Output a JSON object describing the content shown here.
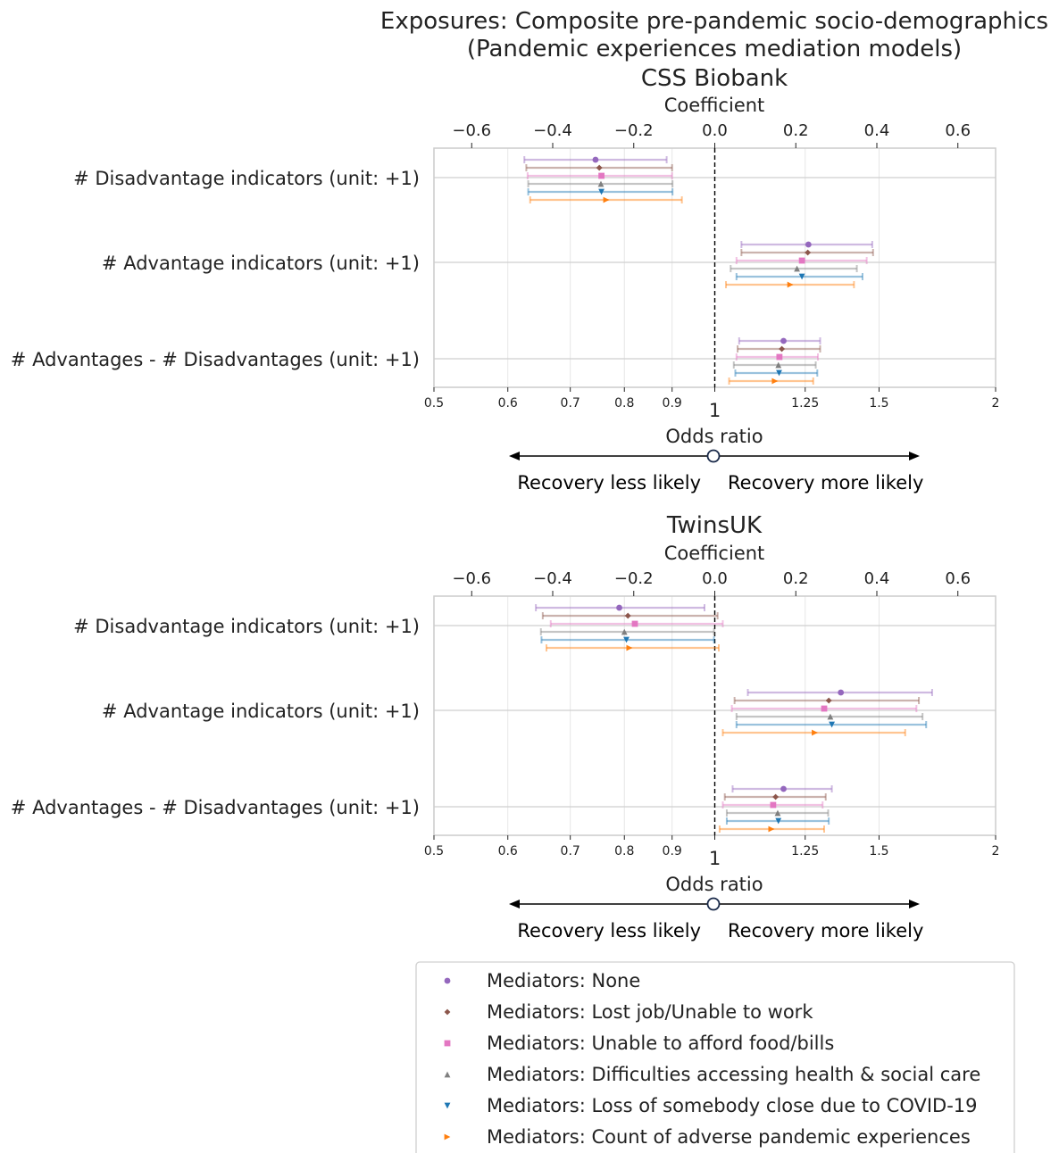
{
  "figure": {
    "title_line1": "Exposures: Composite pre-pandemic socio-demographics",
    "title_line2": "(Pandemic experiences mediation models)"
  },
  "legend": [
    {
      "label": "Mediators: None",
      "color": "#9467bd",
      "marker": "circle"
    },
    {
      "label": "Mediators: Lost job/Unable to work",
      "color": "#8c564b",
      "marker": "diamond"
    },
    {
      "label": "Mediators: Unable to afford food/bills",
      "color": "#e377c2",
      "marker": "square"
    },
    {
      "label": "Mediators: Difficulties accessing health & social care",
      "color": "#7f7f7f",
      "marker": "triangle-up"
    },
    {
      "label": "Mediators: Loss of somebody close due to COVID-19",
      "color": "#1f77b4",
      "marker": "triangle-down"
    },
    {
      "label": "Mediators: Count of adverse pandemic experiences",
      "color": "#ff7f0e",
      "marker": "triangle-right"
    }
  ],
  "chart_data": [
    {
      "type": "scatter",
      "title": "CSS Biobank",
      "xlabel_top": "Coefficient",
      "xlabel_bottom": "Odds ratio",
      "x_scale": "log",
      "xlim": [
        0.5,
        2.0
      ],
      "top_ticks": [
        "−0.6",
        "−0.4",
        "−0.2",
        "0.0",
        "0.2",
        "0.4",
        "0.6"
      ],
      "bottom_ticks": [
        "0.5",
        "0.6",
        "0.7",
        "0.8",
        "0.9",
        "1",
        "1.25",
        "1.5",
        "2"
      ],
      "arrow_left": "Recovery less likely",
      "arrow_right": "Recovery more likely",
      "categories": [
        "# Disadvantage indicators (unit: +1)",
        "# Advantage indicators (unit: +1)",
        "# Advantages - # Disadvantages (unit: +1)"
      ],
      "series": [
        {
          "name": "Mediators: None",
          "values": [
            {
              "or": 0.745,
              "lo": 0.625,
              "hi": 0.888
            },
            {
              "or": 1.26,
              "lo": 1.068,
              "hi": 1.475
            },
            {
              "or": 1.185,
              "lo": 1.062,
              "hi": 1.297
            }
          ]
        },
        {
          "name": "Mediators: Lost job/Unable to work",
          "values": [
            {
              "or": 0.752,
              "lo": 0.628,
              "hi": 0.9
            },
            {
              "or": 1.258,
              "lo": 1.068,
              "hi": 1.478
            },
            {
              "or": 1.18,
              "lo": 1.058,
              "hi": 1.297
            }
          ]
        },
        {
          "name": "Mediators: Unable to afford food/bills",
          "values": [
            {
              "or": 0.756,
              "lo": 0.63,
              "hi": 0.9
            },
            {
              "or": 1.24,
              "lo": 1.055,
              "hi": 1.455
            },
            {
              "or": 1.173,
              "lo": 1.055,
              "hi": 1.29
            }
          ]
        },
        {
          "name": "Mediators: Difficulties accessing health & social care",
          "values": [
            {
              "or": 0.755,
              "lo": 0.631,
              "hi": 0.901
            },
            {
              "or": 1.225,
              "lo": 1.04,
              "hi": 1.42
            },
            {
              "or": 1.17,
              "lo": 1.048,
              "hi": 1.283
            }
          ]
        },
        {
          "name": "Mediators: Loss of somebody close due to COVID-19",
          "values": [
            {
              "or": 0.756,
              "lo": 0.631,
              "hi": 0.901
            },
            {
              "or": 1.24,
              "lo": 1.055,
              "hi": 1.44
            },
            {
              "or": 1.172,
              "lo": 1.052,
              "hi": 1.288
            }
          ]
        },
        {
          "name": "Mediators: Count of adverse pandemic experiences",
          "values": [
            {
              "or": 0.765,
              "lo": 0.634,
              "hi": 0.922
            },
            {
              "or": 1.205,
              "lo": 1.028,
              "hi": 1.41
            },
            {
              "or": 1.16,
              "lo": 1.036,
              "hi": 1.275
            }
          ]
        }
      ]
    },
    {
      "type": "scatter",
      "title": "TwinsUK",
      "xlabel_top": "Coefficient",
      "xlabel_bottom": "Odds ratio",
      "x_scale": "log",
      "xlim": [
        0.5,
        2.0
      ],
      "top_ticks": [
        "−0.6",
        "−0.4",
        "−0.2",
        "0.0",
        "0.2",
        "0.4",
        "0.6"
      ],
      "bottom_ticks": [
        "0.5",
        "0.6",
        "0.7",
        "0.8",
        "0.9",
        "1",
        "1.25",
        "1.5",
        "2"
      ],
      "arrow_left": "Recovery less likely",
      "arrow_right": "Recovery more likely",
      "categories": [
        "# Disadvantage indicators (unit: +1)",
        "# Advantage indicators (unit: +1)",
        "# Advantages - # Disadvantages (unit: +1)"
      ],
      "series": [
        {
          "name": "Mediators: None",
          "values": [
            {
              "or": 0.79,
              "lo": 0.643,
              "hi": 0.975
            },
            {
              "or": 1.365,
              "lo": 1.085,
              "hi": 1.71
            },
            {
              "or": 1.185,
              "lo": 1.045,
              "hi": 1.335
            }
          ]
        },
        {
          "name": "Mediators: Lost job/Unable to work",
          "values": [
            {
              "or": 0.807,
              "lo": 0.654,
              "hi": 1.007
            },
            {
              "or": 1.325,
              "lo": 1.05,
              "hi": 1.655
            },
            {
              "or": 1.162,
              "lo": 1.025,
              "hi": 1.315
            }
          ]
        },
        {
          "name": "Mediators: Unable to afford food/bills",
          "values": [
            {
              "or": 0.821,
              "lo": 0.667,
              "hi": 1.02
            },
            {
              "or": 1.31,
              "lo": 1.043,
              "hi": 1.645
            },
            {
              "or": 1.155,
              "lo": 1.02,
              "hi": 1.305
            }
          ]
        },
        {
          "name": "Mediators: Difficulties accessing health & social care",
          "values": [
            {
              "or": 0.8,
              "lo": 0.651,
              "hi": 0.998
            },
            {
              "or": 1.33,
              "lo": 1.055,
              "hi": 1.67
            },
            {
              "or": 1.168,
              "lo": 1.03,
              "hi": 1.323
            }
          ]
        },
        {
          "name": "Mediators: Loss of somebody close due to COVID-19",
          "values": [
            {
              "or": 0.804,
              "lo": 0.652,
              "hi": 0.998
            },
            {
              "or": 1.335,
              "lo": 1.055,
              "hi": 1.685
            },
            {
              "or": 1.17,
              "lo": 1.03,
              "hi": 1.325
            }
          ]
        },
        {
          "name": "Mediators: Count of adverse pandemic experiences",
          "values": [
            {
              "or": 0.81,
              "lo": 0.66,
              "hi": 1.01
            },
            {
              "or": 1.28,
              "lo": 1.02,
              "hi": 1.6
            },
            {
              "or": 1.15,
              "lo": 1.012,
              "hi": 1.31
            }
          ]
        }
      ]
    }
  ]
}
